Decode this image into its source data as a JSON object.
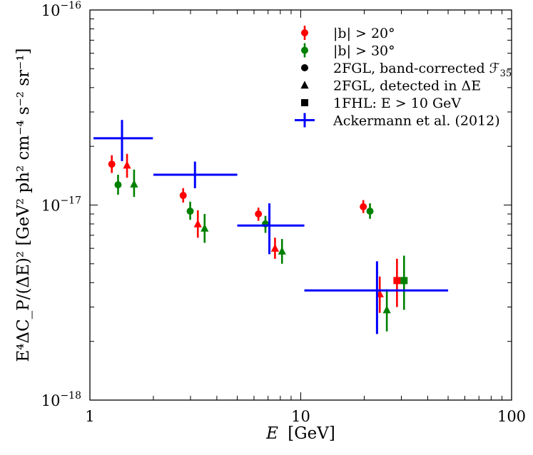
{
  "chart_data": {
    "type": "scatter",
    "title": "",
    "xlabel_var": "E",
    "xlabel_unit": "[GeV]",
    "ylabel": "E⁴ΔC_P/(ΔE)² [GeV² ph² cm⁻⁴ s⁻² sr⁻¹]",
    "xscale": "log",
    "yscale": "log",
    "xlim": [
      1,
      100
    ],
    "ylim": [
      1e-18,
      1e-16
    ],
    "x_ticks": [
      {
        "value": 1,
        "label": "1"
      },
      {
        "value": 10,
        "label": "10"
      },
      {
        "value": 100,
        "label": "100"
      }
    ],
    "y_ticks": [
      {
        "value": 1e-18,
        "base": "10",
        "exp": "−18"
      },
      {
        "value": 1e-17,
        "base": "10",
        "exp": "−17"
      },
      {
        "value": 1e-16,
        "base": "10",
        "exp": "−16"
      }
    ],
    "series": [
      {
        "name": "|b| > 20°, 2FGL band-corrected F35",
        "color": "#ff0000",
        "marker": "circle",
        "points": [
          {
            "x": 1.27,
            "y": 1.62e-17,
            "ylo": 1.46e-17,
            "yhi": 1.8e-17
          },
          {
            "x": 2.77,
            "y": 1.12e-17,
            "ylo": 1.03e-17,
            "yhi": 1.22e-17
          },
          {
            "x": 6.3,
            "y": 9e-18,
            "ylo": 8.3e-18,
            "yhi": 9.7e-18
          },
          {
            "x": 19.8,
            "y": 9.8e-18,
            "ylo": 9.1e-18,
            "yhi": 1.06e-17
          }
        ]
      },
      {
        "name": "|b| > 30°, 2FGL band-corrected F35",
        "color": "#008000",
        "marker": "circle",
        "points": [
          {
            "x": 1.36,
            "y": 1.27e-17,
            "ylo": 1.13e-17,
            "yhi": 1.43e-17
          },
          {
            "x": 2.99,
            "y": 9.3e-18,
            "ylo": 8.4e-18,
            "yhi": 1.04e-17
          },
          {
            "x": 6.8,
            "y": 8e-18,
            "ylo": 7.2e-18,
            "yhi": 8.8e-18
          },
          {
            "x": 21.3,
            "y": 9.3e-18,
            "ylo": 8.5e-18,
            "yhi": 1.02e-17
          }
        ]
      },
      {
        "name": "|b| > 20°, 2FGL detected in ΔE",
        "color": "#ff0000",
        "marker": "triangle",
        "points": [
          {
            "x": 1.5,
            "y": 1.6e-17,
            "ylo": 1.38e-17,
            "yhi": 1.83e-17
          },
          {
            "x": 3.25,
            "y": 8e-18,
            "ylo": 6.8e-18,
            "yhi": 9.4e-18
          },
          {
            "x": 7.55,
            "y": 6e-18,
            "ylo": 5.3e-18,
            "yhi": 6.8e-18
          },
          {
            "x": 23.7,
            "y": 3.5e-18,
            "ylo": 2.8e-18,
            "yhi": 4.3e-18
          }
        ]
      },
      {
        "name": "|b| > 30°, 2FGL detected in ΔE",
        "color": "#008000",
        "marker": "triangle",
        "points": [
          {
            "x": 1.62,
            "y": 1.28e-17,
            "ylo": 1.1e-17,
            "yhi": 1.52e-17
          },
          {
            "x": 3.5,
            "y": 7.6e-18,
            "ylo": 6.4e-18,
            "yhi": 9e-18
          },
          {
            "x": 8.15,
            "y": 5.8e-18,
            "ylo": 5e-18,
            "yhi": 6.7e-18
          },
          {
            "x": 25.6,
            "y": 2.9e-18,
            "ylo": 2.25e-18,
            "yhi": 3.7e-18
          }
        ]
      },
      {
        "name": "|b| > 20°, 1FHL E > 10 GeV",
        "color": "#ff0000",
        "marker": "square",
        "points": [
          {
            "x": 28.6,
            "y": 4.1e-18,
            "ylo": 3e-18,
            "yhi": 5.3e-18
          }
        ]
      },
      {
        "name": "|b| > 30°, 1FHL E > 10 GeV",
        "color": "#008000",
        "marker": "square",
        "points": [
          {
            "x": 30.9,
            "y": 4.1e-18,
            "ylo": 2.9e-18,
            "yhi": 5.5e-18
          }
        ]
      },
      {
        "name": "Ackermann et al. (2012)",
        "color": "#0000ff",
        "marker": "none",
        "points": [
          {
            "x": 1.42,
            "y": 2.2e-17,
            "xlo": 1.04,
            "xhi": 1.99,
            "ylo": 1.68e-17,
            "yhi": 2.73e-17
          },
          {
            "x": 3.15,
            "y": 1.43e-17,
            "xlo": 2.0,
            "xhi": 5.0,
            "ylo": 1.22e-17,
            "yhi": 1.67e-17
          },
          {
            "x": 7.1,
            "y": 7.85e-18,
            "xlo": 5.0,
            "xhi": 10.4,
            "ylo": 5.6e-18,
            "yhi": 1.02e-17
          },
          {
            "x": 23.0,
            "y": 3.65e-18,
            "xlo": 10.4,
            "xhi": 50.0,
            "ylo": 2.18e-18,
            "yhi": 5.15e-18
          }
        ]
      }
    ],
    "legend": {
      "placement": "top-right",
      "entries": [
        {
          "key": "b20",
          "label": "|b| > 20°",
          "color": "#ff0000",
          "marker": "circle-errorbar"
        },
        {
          "key": "b30",
          "label": "|b| > 30°",
          "color": "#008000",
          "marker": "circle-errorbar"
        },
        {
          "key": "fgl_band",
          "label": "2FGL, band-corrected ℱ",
          "sub": "35",
          "color": "#000000",
          "marker": "circle"
        },
        {
          "key": "fgl_detected",
          "label": "2FGL, detected in ΔE",
          "color": "#000000",
          "marker": "triangle"
        },
        {
          "key": "fhl",
          "label": "1FHL: E > 10 GeV",
          "color": "#000000",
          "marker": "square"
        },
        {
          "key": "ackermann",
          "label": "Ackermann et al. (2012)",
          "color": "#0000ff",
          "marker": "cross"
        }
      ]
    }
  }
}
